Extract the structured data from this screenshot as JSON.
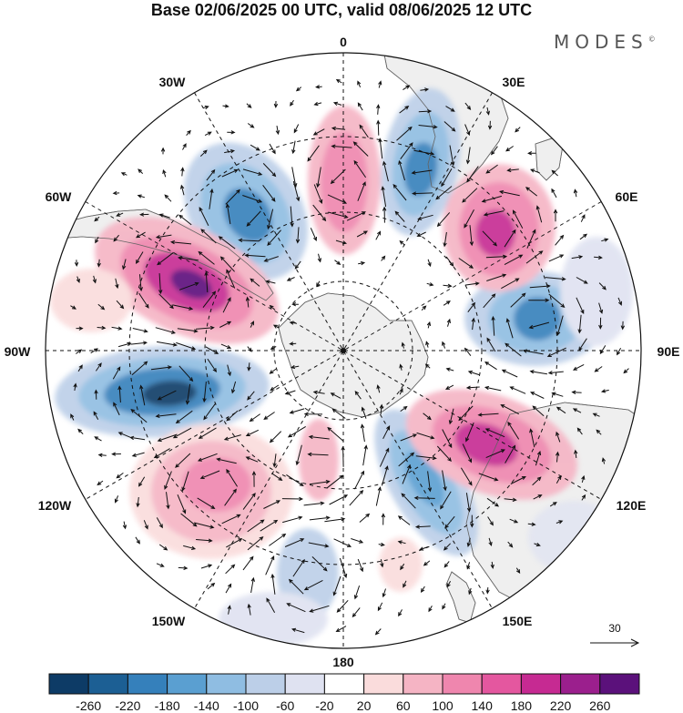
{
  "title": "Base 02/06/2025 00 UTC, valid 08/06/2025 12 UTC",
  "logo": "MODES",
  "logo_mark": "©",
  "longitude_labels": {
    "lon_0": "0",
    "lon_30e": "30E",
    "lon_60e": "60E",
    "lon_90e": "90E",
    "lon_120e": "120E",
    "lon_150e": "150E",
    "lon_180": "180",
    "lon_150w": "150W",
    "lon_120w": "120W",
    "lon_90w": "90W",
    "lon_60w": "60W",
    "lon_30w": "30W"
  },
  "wind_reference": {
    "value": "30"
  },
  "colorbar": {
    "colors": [
      "#0d3b66",
      "#1c5f94",
      "#3580bb",
      "#5a9fd1",
      "#8fbde2",
      "#bccfe8",
      "#dfe2f1",
      "#ffffff",
      "#fadcdc",
      "#f5b4c4",
      "#ef86ae",
      "#e4579f",
      "#c62a92",
      "#9b1f8d",
      "#5b117b"
    ],
    "labels": [
      "-260",
      "-220",
      "-180",
      "-140",
      "-100",
      "-60",
      "-20",
      "20",
      "60",
      "100",
      "140",
      "180",
      "220",
      "260"
    ]
  },
  "colors": {
    "land": "#efefef",
    "coast": "#666666",
    "grid": "#111111"
  }
}
